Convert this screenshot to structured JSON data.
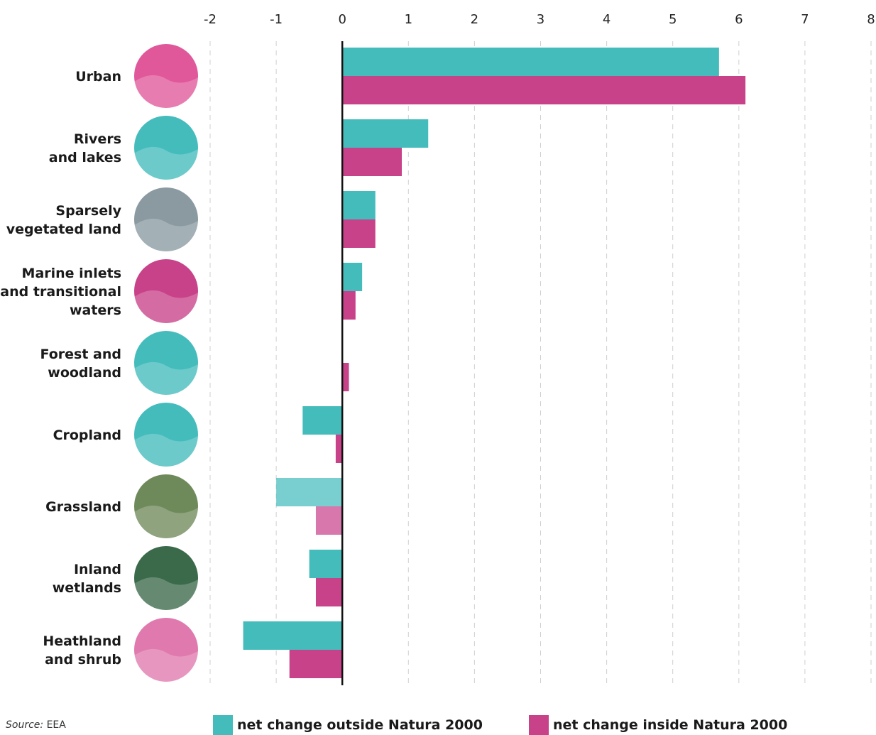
{
  "chart_data": {
    "type": "bar",
    "orientation": "horizontal",
    "categories": [
      [
        "Urban"
      ],
      [
        "Rivers",
        "and lakes"
      ],
      [
        "Sparsely",
        "vegetated land"
      ],
      [
        "Marine inlets",
        "and transitional",
        "waters"
      ],
      [
        "Forest and",
        "woodland"
      ],
      [
        "Cropland"
      ],
      [
        "Grassland"
      ],
      [
        "Inland",
        "wetlands"
      ],
      [
        "Heathland",
        "and shrub"
      ]
    ],
    "series": [
      {
        "name": "net change outside Natura 2000",
        "color": "#45bcbc",
        "values": [
          5.7,
          1.3,
          0.5,
          0.3,
          0.0,
          -0.6,
          -1.0,
          -0.5,
          -1.5
        ]
      },
      {
        "name": "net change inside Natura 2000",
        "color": "#c8428a",
        "values": [
          6.1,
          0.9,
          0.5,
          0.2,
          0.1,
          -0.1,
          -0.4,
          -0.4,
          -0.8
        ]
      }
    ],
    "xlim": [
      -2,
      8
    ],
    "xticks": [
      "-2",
      "-1",
      "0",
      "1",
      "2",
      "3",
      "4",
      "5",
      "6",
      "7",
      "8"
    ],
    "grid": "vertical dashed",
    "legend": "bottom",
    "icon_colors": [
      "#e0589a",
      "#45bcbc",
      "#8a9aa0",
      "#c8428a",
      "#45bcbc",
      "#45bcbc",
      "#6f8a5a",
      "#3a6a4a",
      "#e07aae"
    ],
    "icon_names": [
      "city-icon",
      "heron-icon",
      "mountain-icon",
      "seagull-icon",
      "squirrel-icon",
      "wheat-icon",
      "butterfly-icon",
      "frog-icon",
      "heather-icon"
    ]
  },
  "source": {
    "label": "Source:",
    "value": "EEA"
  }
}
